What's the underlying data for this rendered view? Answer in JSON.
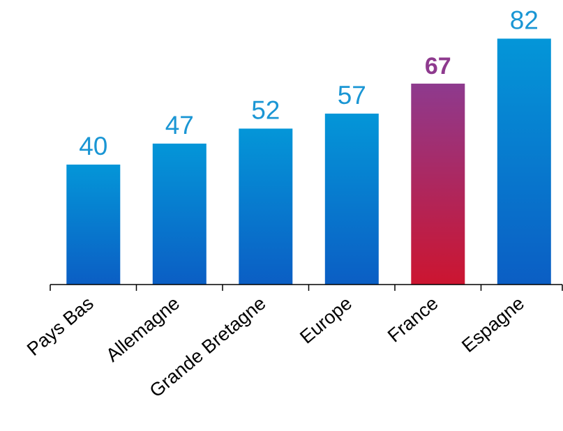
{
  "chart_data": {
    "type": "bar",
    "categories": [
      "Pays Bas",
      "Allemagne",
      "Grande Bretagne",
      "Europe",
      "France",
      "Espagne"
    ],
    "values": [
      40,
      47,
      52,
      57,
      67,
      82
    ],
    "highlight": "France",
    "title": "",
    "xlabel": "",
    "ylabel": "",
    "grid": false,
    "legend": "none",
    "colors": {
      "bar_top": "#0496d8",
      "bar_bottom": "#0b5ec4",
      "highlight_top": "#8e3a8e",
      "highlight_bottom": "#cc1530",
      "label": "#1a96d4",
      "highlight_label": "#8e3a8e"
    }
  }
}
